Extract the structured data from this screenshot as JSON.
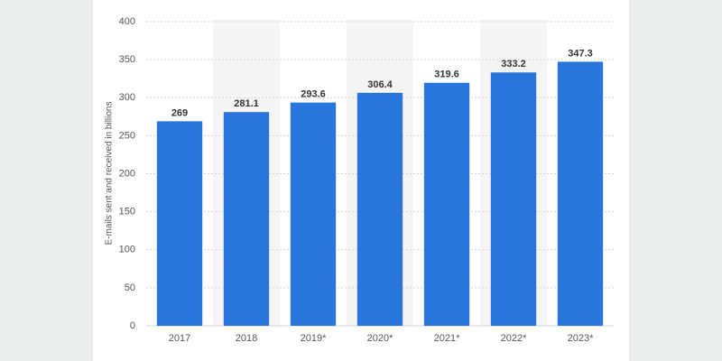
{
  "chart_data": {
    "type": "bar",
    "y_label": "E-mails sent and received in billions",
    "categories": [
      "2017",
      "2018",
      "2019*",
      "2020*",
      "2021*",
      "2022*",
      "2023*"
    ],
    "values": [
      269,
      281.1,
      293.6,
      306.4,
      319.6,
      333.2,
      347.3
    ],
    "color": "#2876dd",
    "ylim": [
      0,
      400
    ],
    "yticks": [
      0,
      50,
      100,
      150,
      200,
      250,
      300,
      350,
      400
    ],
    "grid": true
  }
}
